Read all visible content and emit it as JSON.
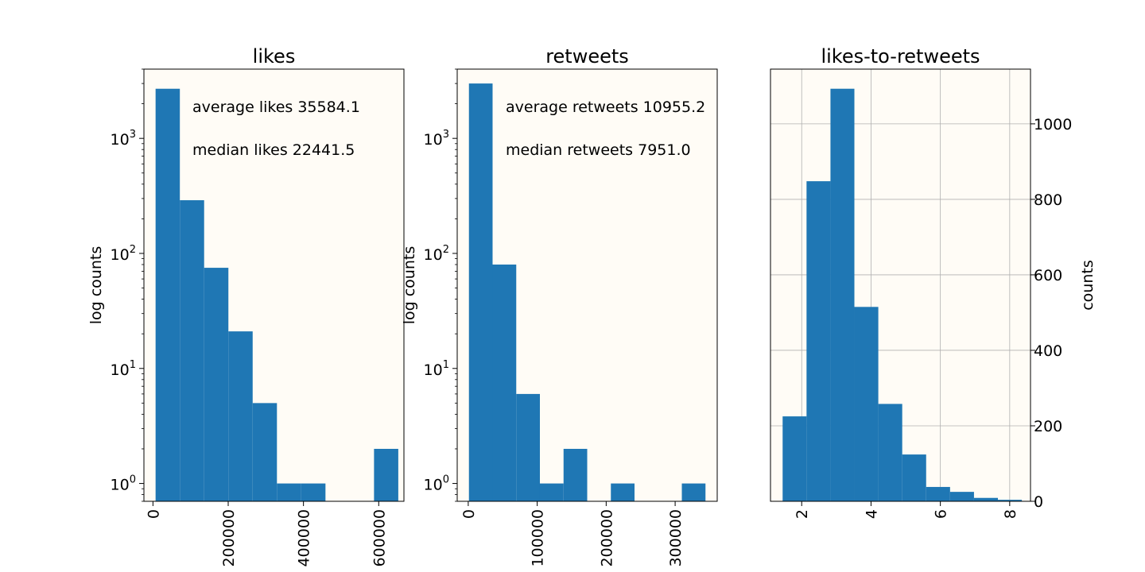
{
  "chart_data": [
    {
      "type": "bar",
      "title": "likes",
      "ylabel": "log counts",
      "xlabel": "",
      "yscale": "log",
      "ylim": [
        0.7,
        4000
      ],
      "xlim": [
        -24000,
        667000
      ],
      "y_ticks": [
        {
          "v": 1,
          "label": "10",
          "exp": "0"
        },
        {
          "v": 10,
          "label": "10",
          "exp": "1"
        },
        {
          "v": 100,
          "label": "10",
          "exp": "2"
        },
        {
          "v": 1000,
          "label": "10",
          "exp": "3"
        }
      ],
      "x_ticks": [
        {
          "v": 0,
          "label": "0"
        },
        {
          "v": 200000,
          "label": "200000"
        },
        {
          "v": 400000,
          "label": "400000"
        },
        {
          "v": 600000,
          "label": "600000"
        }
      ],
      "bins": [
        {
          "x0": 7000,
          "x1": 71500,
          "count": 2700
        },
        {
          "x0": 71500,
          "x1": 136000,
          "count": 290
        },
        {
          "x0": 136000,
          "x1": 200500,
          "count": 75
        },
        {
          "x0": 200500,
          "x1": 265000,
          "count": 21
        },
        {
          "x0": 265000,
          "x1": 329500,
          "count": 5
        },
        {
          "x0": 329500,
          "x1": 394000,
          "count": 1
        },
        {
          "x0": 394000,
          "x1": 458500,
          "count": 1
        },
        {
          "x0": 458500,
          "x1": 523000,
          "count": 0
        },
        {
          "x0": 523000,
          "x1": 587500,
          "count": 0
        },
        {
          "x0": 587500,
          "x1": 652000,
          "count": 2
        }
      ],
      "annotations": [
        "average likes 35584.1",
        "median likes 22441.5"
      ],
      "background": "#fffcf6",
      "bar_color": "#1f77b4",
      "grid": false,
      "y_axis_side": "left"
    },
    {
      "type": "bar",
      "title": "retweets",
      "ylabel": "log counts",
      "xlabel": "",
      "yscale": "log",
      "ylim": [
        0.7,
        4000
      ],
      "xlim": [
        -16000,
        361000
      ],
      "y_ticks": [
        {
          "v": 1,
          "label": "10",
          "exp": "0"
        },
        {
          "v": 10,
          "label": "10",
          "exp": "1"
        },
        {
          "v": 100,
          "label": "10",
          "exp": "2"
        },
        {
          "v": 1000,
          "label": "10",
          "exp": "3"
        }
      ],
      "x_ticks": [
        {
          "v": 0,
          "label": "0"
        },
        {
          "v": 100000,
          "label": "100000"
        },
        {
          "v": 200000,
          "label": "200000"
        },
        {
          "v": 300000,
          "label": "300000"
        }
      ],
      "bins": [
        {
          "x0": 1000,
          "x1": 35300,
          "count": 3000
        },
        {
          "x0": 35300,
          "x1": 69600,
          "count": 80
        },
        {
          "x0": 69600,
          "x1": 103900,
          "count": 6
        },
        {
          "x0": 103900,
          "x1": 138200,
          "count": 1
        },
        {
          "x0": 138200,
          "x1": 172500,
          "count": 2
        },
        {
          "x0": 172500,
          "x1": 206800,
          "count": 0
        },
        {
          "x0": 206800,
          "x1": 241100,
          "count": 1
        },
        {
          "x0": 241100,
          "x1": 275400,
          "count": 0
        },
        {
          "x0": 275400,
          "x1": 309700,
          "count": 0
        },
        {
          "x0": 309700,
          "x1": 344000,
          "count": 1
        }
      ],
      "annotations": [
        "average retweets 10955.2",
        "median retweets 7951.0"
      ],
      "background": "#fffcf6",
      "bar_color": "#1f77b4",
      "grid": false,
      "y_axis_side": "left"
    },
    {
      "type": "bar",
      "title": "likes-to-retweets",
      "ylabel": "counts",
      "xlabel": "",
      "yscale": "linear",
      "ylim": [
        0,
        1145
      ],
      "xlim": [
        1.1,
        8.6
      ],
      "y_ticks": [
        {
          "v": 0,
          "label": "0"
        },
        {
          "v": 200,
          "label": "200"
        },
        {
          "v": 400,
          "label": "400"
        },
        {
          "v": 600,
          "label": "600"
        },
        {
          "v": 800,
          "label": "800"
        },
        {
          "v": 1000,
          "label": "1000"
        }
      ],
      "x_ticks": [
        {
          "v": 2,
          "label": "2"
        },
        {
          "v": 4,
          "label": "4"
        },
        {
          "v": 6,
          "label": "6"
        },
        {
          "v": 8,
          "label": "8"
        }
      ],
      "bins": [
        {
          "x0": 1.45,
          "x1": 2.14,
          "count": 225
        },
        {
          "x0": 2.14,
          "x1": 2.83,
          "count": 848
        },
        {
          "x0": 2.83,
          "x1": 3.52,
          "count": 1093
        },
        {
          "x0": 3.52,
          "x1": 4.21,
          "count": 515
        },
        {
          "x0": 4.21,
          "x1": 4.9,
          "count": 258
        },
        {
          "x0": 4.9,
          "x1": 5.59,
          "count": 124
        },
        {
          "x0": 5.59,
          "x1": 6.28,
          "count": 38
        },
        {
          "x0": 6.28,
          "x1": 6.97,
          "count": 25
        },
        {
          "x0": 6.97,
          "x1": 7.66,
          "count": 9
        },
        {
          "x0": 7.66,
          "x1": 8.35,
          "count": 4
        }
      ],
      "annotations": [],
      "background": "#fffcf6",
      "bar_color": "#1f77b4",
      "grid": true,
      "y_axis_side": "right"
    }
  ]
}
